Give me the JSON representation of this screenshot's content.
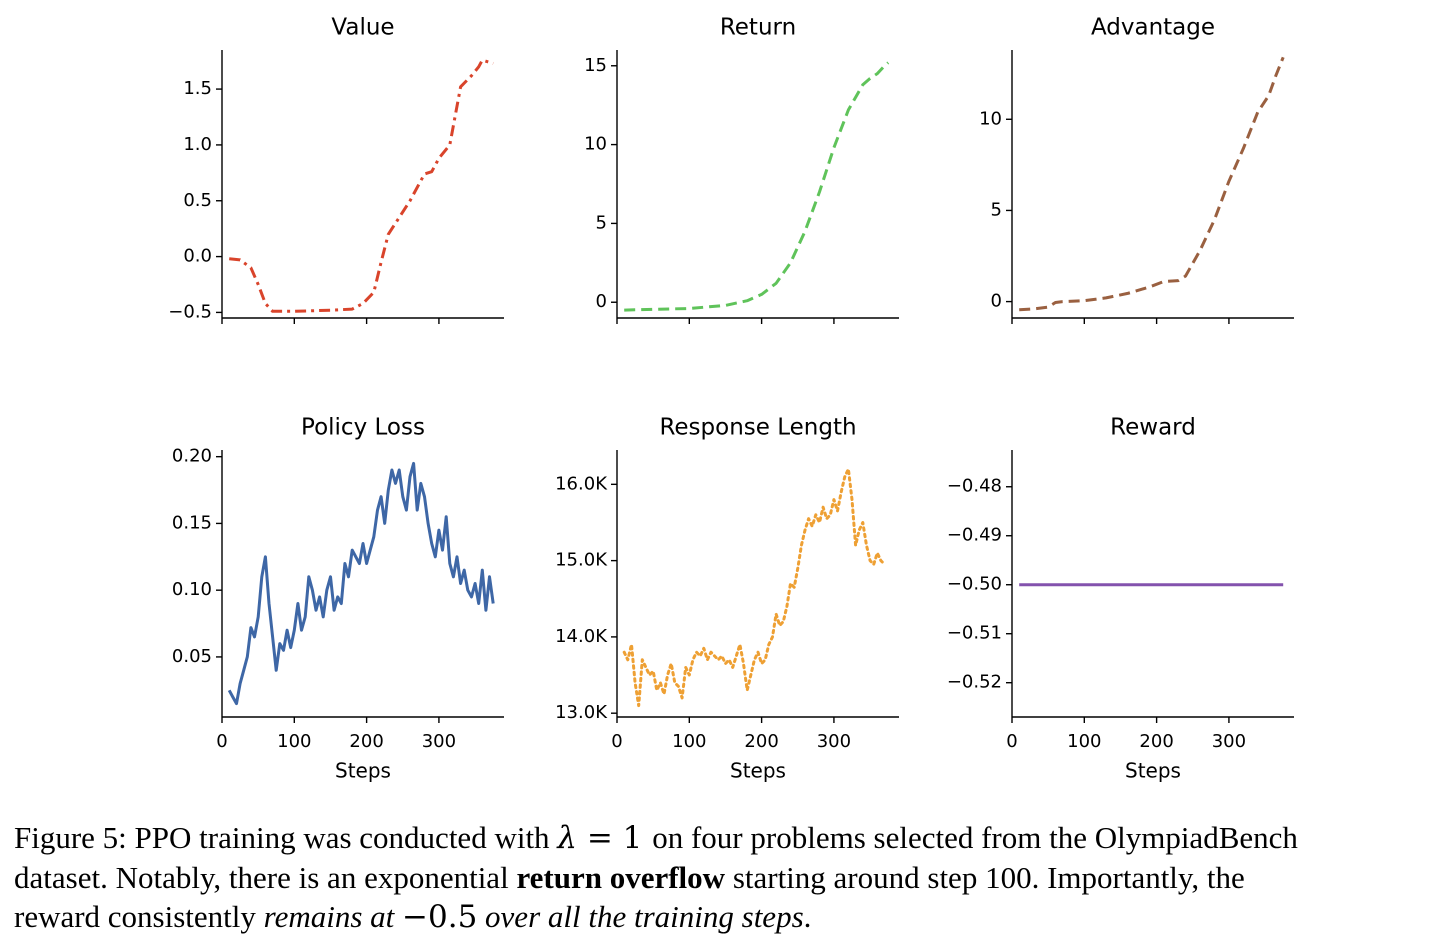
{
  "figure": {
    "x_label": "Steps",
    "colors": {
      "value": "#d9442b",
      "return": "#5fc35a",
      "advantage": "#9a6040",
      "policy_loss": "#3e67a6",
      "response_length": "#eea034",
      "reward": "#8352ad"
    }
  },
  "chart_data": [
    {
      "type": "line",
      "title": "Value",
      "xlabel": "",
      "line_style": "dash-dot",
      "xlim": [
        0,
        390
      ],
      "ylim": [
        -0.55,
        1.85
      ],
      "xticks": [
        0,
        100,
        200,
        300
      ],
      "xtick_labels": [
        "",
        "",
        "",
        ""
      ],
      "yticks": [
        -0.5,
        0.0,
        0.5,
        1.0,
        1.5
      ],
      "ytick_labels": [
        "−0.5",
        "0.0",
        "0.5",
        "1.0",
        "1.5"
      ],
      "x": [
        10,
        25,
        40,
        50,
        60,
        70,
        80,
        100,
        150,
        180,
        195,
        210,
        220,
        230,
        245,
        260,
        270,
        280,
        290,
        300,
        315,
        330,
        345,
        355,
        360,
        370,
        375
      ],
      "y": [
        -0.02,
        -0.03,
        -0.1,
        -0.25,
        -0.42,
        -0.49,
        -0.49,
        -0.49,
        -0.48,
        -0.47,
        -0.42,
        -0.32,
        -0.05,
        0.2,
        0.35,
        0.5,
        0.62,
        0.74,
        0.76,
        0.88,
        1.0,
        1.52,
        1.62,
        1.7,
        1.76,
        1.74,
        1.73
      ]
    },
    {
      "type": "line",
      "title": "Return",
      "xlabel": "",
      "line_style": "dashed",
      "xlim": [
        0,
        390
      ],
      "ylim": [
        -1,
        16
      ],
      "xticks": [
        0,
        100,
        200,
        300
      ],
      "xtick_labels": [
        "",
        "",
        "",
        ""
      ],
      "yticks": [
        0,
        5,
        10,
        15
      ],
      "ytick_labels": [
        "0",
        "5",
        "10",
        "15"
      ],
      "x": [
        10,
        50,
        100,
        150,
        180,
        200,
        220,
        240,
        260,
        280,
        300,
        320,
        340,
        350,
        360,
        370,
        375
      ],
      "y": [
        -0.5,
        -0.45,
        -0.4,
        -0.2,
        0.1,
        0.5,
        1.2,
        2.5,
        4.5,
        7,
        9.8,
        12.2,
        13.8,
        14.2,
        14.5,
        15,
        15.2
      ]
    },
    {
      "type": "line",
      "title": "Advantage",
      "xlabel": "",
      "line_style": "dashed",
      "xlim": [
        0,
        390
      ],
      "ylim": [
        -0.9,
        13.8
      ],
      "xticks": [
        0,
        100,
        200,
        300
      ],
      "xtick_labels": [
        "",
        "",
        "",
        ""
      ],
      "yticks": [
        0,
        5,
        10
      ],
      "ytick_labels": [
        "0",
        "5",
        "10"
      ],
      "x": [
        10,
        30,
        50,
        60,
        70,
        100,
        130,
        160,
        190,
        210,
        230,
        240,
        260,
        280,
        300,
        320,
        340,
        355,
        365,
        375
      ],
      "y": [
        -0.45,
        -0.4,
        -0.3,
        -0.05,
        0.0,
        0.05,
        0.2,
        0.45,
        0.8,
        1.1,
        1.15,
        1.4,
        2.8,
        4.5,
        6.6,
        8.4,
        10.4,
        11.3,
        12.4,
        13.4
      ]
    },
    {
      "type": "line",
      "title": "Policy Loss",
      "xlabel": "Steps",
      "line_style": "solid",
      "xlim": [
        0,
        390
      ],
      "ylim": [
        0.005,
        0.205
      ],
      "xticks": [
        0,
        100,
        200,
        300
      ],
      "xtick_labels": [
        "0",
        "100",
        "200",
        "300"
      ],
      "yticks": [
        0.05,
        0.1,
        0.15,
        0.2
      ],
      "ytick_labels": [
        "0.05",
        "0.10",
        "0.15",
        "0.20"
      ],
      "x": [
        10,
        15,
        20,
        25,
        30,
        35,
        40,
        45,
        50,
        55,
        60,
        65,
        70,
        75,
        80,
        85,
        90,
        95,
        100,
        105,
        110,
        115,
        120,
        125,
        130,
        135,
        140,
        145,
        150,
        155,
        160,
        165,
        170,
        175,
        180,
        185,
        190,
        195,
        200,
        205,
        210,
        215,
        220,
        225,
        230,
        235,
        240,
        245,
        250,
        255,
        260,
        265,
        270,
        275,
        280,
        285,
        290,
        295,
        300,
        305,
        310,
        315,
        320,
        325,
        330,
        335,
        340,
        345,
        350,
        355,
        360,
        365,
        370,
        375
      ],
      "y": [
        0.025,
        0.02,
        0.015,
        0.03,
        0.04,
        0.05,
        0.072,
        0.065,
        0.08,
        0.11,
        0.125,
        0.09,
        0.065,
        0.04,
        0.06,
        0.055,
        0.07,
        0.057,
        0.07,
        0.09,
        0.07,
        0.08,
        0.11,
        0.1,
        0.085,
        0.095,
        0.08,
        0.1,
        0.11,
        0.085,
        0.095,
        0.09,
        0.12,
        0.11,
        0.13,
        0.125,
        0.12,
        0.135,
        0.12,
        0.13,
        0.14,
        0.16,
        0.17,
        0.15,
        0.175,
        0.19,
        0.18,
        0.19,
        0.17,
        0.16,
        0.185,
        0.195,
        0.16,
        0.18,
        0.17,
        0.15,
        0.135,
        0.125,
        0.145,
        0.13,
        0.155,
        0.12,
        0.11,
        0.125,
        0.105,
        0.115,
        0.1,
        0.095,
        0.105,
        0.09,
        0.115,
        0.085,
        0.11,
        0.09
      ]
    },
    {
      "type": "line",
      "title": "Response Length",
      "xlabel": "Steps",
      "line_style": "dotted",
      "xlim": [
        0,
        390
      ],
      "ylim": [
        12950,
        16450
      ],
      "xticks": [
        0,
        100,
        200,
        300
      ],
      "xtick_labels": [
        "0",
        "100",
        "200",
        "300"
      ],
      "yticks": [
        13000,
        14000,
        15000,
        16000
      ],
      "ytick_labels": [
        "13.0K",
        "14.0K",
        "15.0K",
        "16.0K"
      ],
      "x": [
        10,
        15,
        20,
        25,
        30,
        35,
        40,
        45,
        50,
        55,
        60,
        65,
        70,
        75,
        80,
        85,
        90,
        95,
        100,
        105,
        110,
        115,
        120,
        125,
        130,
        135,
        140,
        145,
        150,
        155,
        160,
        165,
        170,
        175,
        180,
        185,
        190,
        195,
        200,
        205,
        210,
        215,
        220,
        225,
        230,
        235,
        240,
        245,
        250,
        255,
        260,
        265,
        270,
        275,
        280,
        285,
        290,
        295,
        300,
        305,
        310,
        315,
        320,
        325,
        330,
        335,
        340,
        345,
        350,
        355,
        360,
        365,
        370
      ],
      "y": [
        13800,
        13700,
        13900,
        13400,
        13100,
        13700,
        13600,
        13500,
        13550,
        13300,
        13400,
        13250,
        13500,
        13650,
        13400,
        13350,
        13200,
        13600,
        13500,
        13700,
        13800,
        13750,
        13850,
        13700,
        13800,
        13750,
        13700,
        13750,
        13650,
        13700,
        13600,
        13750,
        13900,
        13650,
        13300,
        13500,
        13700,
        13800,
        13650,
        13700,
        13900,
        14000,
        14300,
        14150,
        14200,
        14400,
        14700,
        14650,
        14900,
        15200,
        15400,
        15550,
        15450,
        15600,
        15500,
        15700,
        15550,
        15600,
        15800,
        15650,
        15900,
        16100,
        16200,
        15800,
        15200,
        15400,
        15500,
        15200,
        15000,
        14950,
        15100,
        15000,
        14950
      ]
    },
    {
      "type": "line",
      "title": "Reward",
      "xlabel": "Steps",
      "line_style": "solid",
      "xlim": [
        0,
        390
      ],
      "ylim": [
        -0.527,
        -0.4725
      ],
      "xticks": [
        0,
        100,
        200,
        300
      ],
      "xtick_labels": [
        "0",
        "100",
        "200",
        "300"
      ],
      "yticks": [
        -0.48,
        -0.49,
        -0.5,
        -0.51,
        -0.52
      ],
      "ytick_labels": [
        "−0.48",
        "−0.49",
        "−0.50",
        "−0.51",
        "−0.52"
      ],
      "x": [
        10,
        375
      ],
      "y": [
        -0.5,
        -0.5
      ]
    }
  ],
  "caption": {
    "line1_a": "Figure 5: PPO training was conducted with ",
    "lambda": "λ",
    "eq": " = 1 ",
    "line1_b": "on four problems selected from the OlympiadBench",
    "line2_a": "dataset. Notably, there is an exponential ",
    "line2_bold": "return overflow",
    "line2_b": " starting around step 100. Importantly, the",
    "line3_a": "reward consistently ",
    "line3_italic": "remains at ",
    "line3_math": "−0.5",
    "line3_italic2": " over all the training steps",
    "line3_end": "."
  }
}
